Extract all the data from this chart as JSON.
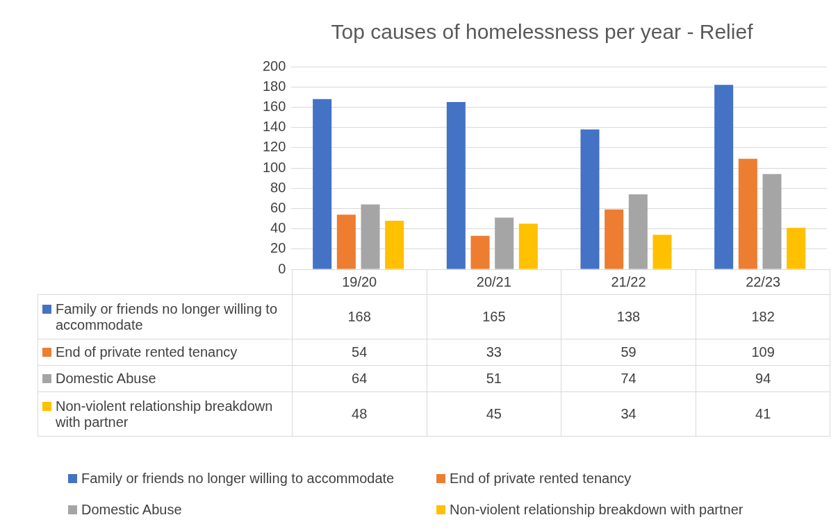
{
  "chart_data": {
    "type": "bar",
    "title": "Top causes of homelessness per year - Relief",
    "categories": [
      "19/20",
      "20/21",
      "21/22",
      "22/23"
    ],
    "series": [
      {
        "name": "Family or friends no longer willing to accommodate",
        "color": "#4472c4",
        "values": [
          168,
          165,
          138,
          182
        ]
      },
      {
        "name": "End of private rented tenancy",
        "color": "#ed7d31",
        "values": [
          54,
          33,
          59,
          109
        ]
      },
      {
        "name": "Domestic Abuse",
        "color": "#a5a5a5",
        "values": [
          64,
          51,
          74,
          94
        ]
      },
      {
        "name": "Non-violent relationship breakdown with partner",
        "color": "#ffc000",
        "values": [
          48,
          45,
          34,
          41
        ]
      }
    ],
    "ylim": [
      0,
      200
    ],
    "yticks": [
      0,
      20,
      40,
      60,
      80,
      100,
      120,
      140,
      160,
      180,
      200
    ],
    "grid": "y",
    "data_labels": true,
    "legend": "bottom"
  }
}
